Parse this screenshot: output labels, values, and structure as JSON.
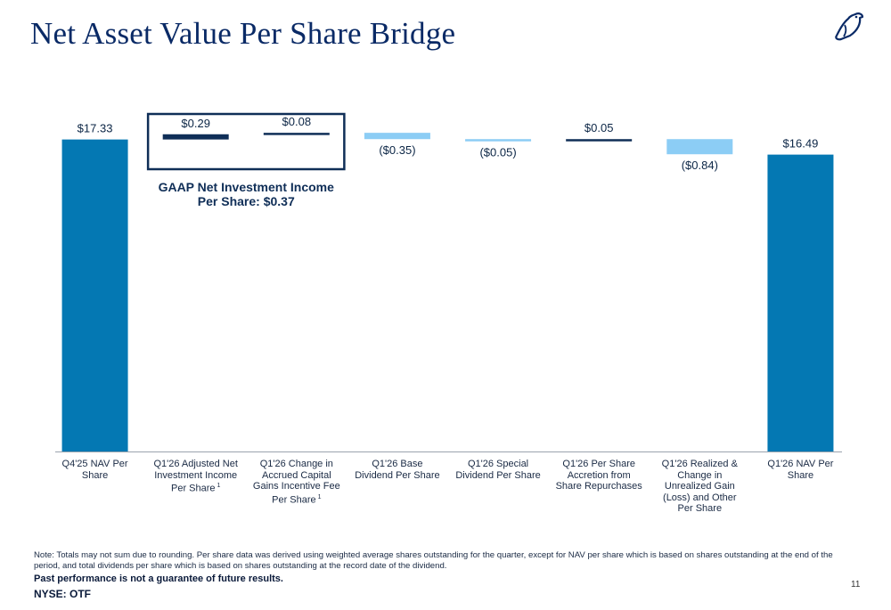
{
  "title": "Net Asset Value Per Share Bridge",
  "logo_icon": "bird-logo-icon",
  "colors": {
    "dark_blue": "#0f2e57",
    "medium_blue": "#0478b3",
    "light_blue": "#8ccdf5",
    "title_blue": "#0a2a66"
  },
  "chart_data": {
    "type": "bar",
    "subtype": "waterfall",
    "categories": [
      "Q4'25 NAV Per Share",
      "Q1'26 Adjusted Net Investment Income Per Share",
      "Q1'26 Change in Accrued Capital Gains Incentive Fee Per Share",
      "Q1'26 Base Dividend Per Share",
      "Q1'26 Special Dividend Per Share",
      "Q1'26 Per Share Accretion from Share Repurchases",
      "Q1'26 Realized & Change in Unrealized Gain (Loss) and Other Per Share",
      "Q1'26 NAV Per Share"
    ],
    "category_footnotes": [
      "",
      "1",
      "1",
      "",
      "",
      "",
      "",
      ""
    ],
    "values": [
      17.33,
      0.29,
      0.08,
      -0.35,
      -0.05,
      0.05,
      -0.84,
      16.49
    ],
    "kinds": [
      "total",
      "increase",
      "increase",
      "decrease",
      "decrease",
      "increase",
      "decrease",
      "total"
    ],
    "data_labels": [
      "$17.33",
      "$0.29",
      "$0.08",
      "($0.35)",
      "($0.05)",
      "$0.05",
      "($0.84)",
      "$16.49"
    ],
    "annotation": {
      "line1": "GAAP Net Investment Income",
      "line2": "Per Share: $0.37"
    },
    "xlabel": "",
    "ylabel": "",
    "ylim": [
      0,
      18.4
    ]
  },
  "footer": {
    "note": "Note: Totals may not sum due to rounding. Per share data was derived using weighted average shares outstanding for the quarter, except for NAV per share which is based on shares outstanding at the end of the period, and total dividends per share which is based on shares outstanding at the record date of the dividend.",
    "performance": "Past performance is not a guarantee of future results.",
    "ticker": "NYSE: OTF",
    "page_number": "11"
  }
}
